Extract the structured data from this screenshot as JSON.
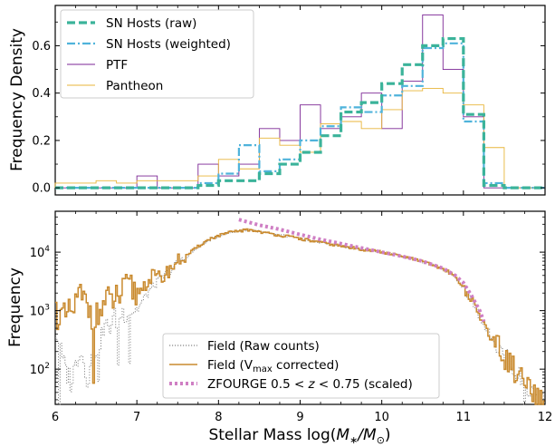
{
  "colors": {
    "sn_raw": "#3bb39a",
    "sn_weighted": "#4fb3db",
    "ptf": "#7b2594",
    "pantheon": "#e8b53a",
    "field_raw": "#888888",
    "field_vmax": "#c98a2e",
    "zfourge": "#cf7fc4"
  },
  "chart_data": [
    {
      "type": "histogram",
      "panel": "top",
      "xlabel": "",
      "ylabel": "Frequency Density",
      "xlim": [
        6,
        12
      ],
      "ylim": [
        -0.03,
        0.77
      ],
      "yticks": [
        0.0,
        0.2,
        0.4,
        0.6
      ],
      "ytick_labels": [
        "0.0",
        "0.2",
        "0.4",
        "0.6"
      ],
      "xticks": [
        6,
        7,
        8,
        9,
        10,
        11,
        12
      ],
      "grid": false,
      "legend_position": "upper-left",
      "bin_edges": [
        6.0,
        6.5,
        6.75,
        7.0,
        7.25,
        7.5,
        7.75,
        8.0,
        8.25,
        8.5,
        8.75,
        9.0,
        9.25,
        9.5,
        9.75,
        10.0,
        10.25,
        10.5,
        10.75,
        11.0,
        11.25,
        11.5,
        12.0
      ],
      "series": [
        {
          "name": "PTF",
          "style": "solid-thin",
          "color_key": "ptf",
          "values": [
            0.0,
            0.0,
            0.0,
            0.05,
            0.0,
            0.0,
            0.1,
            0.05,
            0.1,
            0.25,
            0.2,
            0.35,
            0.25,
            0.3,
            0.4,
            0.25,
            0.45,
            0.73,
            0.5,
            0.3,
            0.0,
            0.0
          ]
        },
        {
          "name": "Pantheon",
          "style": "solid-thin",
          "color_key": "pantheon",
          "values": [
            0.02,
            0.03,
            0.02,
            0.03,
            0.03,
            0.03,
            0.05,
            0.12,
            0.08,
            0.21,
            0.18,
            0.15,
            0.27,
            0.28,
            0.25,
            0.33,
            0.41,
            0.42,
            0.4,
            0.35,
            0.17,
            0.0
          ]
        },
        {
          "name": "SN Hosts (weighted)",
          "style": "dashdot",
          "color_key": "sn_weighted",
          "values": [
            0.0,
            0.0,
            0.0,
            0.0,
            0.0,
            0.0,
            0.02,
            0.06,
            0.18,
            0.07,
            0.12,
            0.2,
            0.26,
            0.34,
            0.32,
            0.39,
            0.43,
            0.59,
            0.61,
            0.28,
            0.02,
            0.0
          ]
        },
        {
          "name": "SN Hosts (raw)",
          "style": "dashed-thick",
          "color_key": "sn_raw",
          "values": [
            0.0,
            0.0,
            0.0,
            0.0,
            0.0,
            0.0,
            0.01,
            0.03,
            0.03,
            0.06,
            0.1,
            0.15,
            0.22,
            0.32,
            0.36,
            0.44,
            0.52,
            0.6,
            0.63,
            0.31,
            0.01,
            0.0
          ]
        }
      ],
      "legend": [
        "SN Hosts (raw)",
        "SN Hosts (weighted)",
        "PTF",
        "Pantheon"
      ]
    },
    {
      "type": "histogram",
      "panel": "bottom",
      "xlabel": "Stellar Mass log(",
      "xlabel_math_1": "M",
      "xlabel_math_sub1": "∗",
      "xlabel_math_2": "/M",
      "xlabel_math_sub2": "⊙",
      "xlabel_end": ")",
      "ylabel": "Frequency",
      "xlim": [
        6,
        12
      ],
      "yscale": "log",
      "ylim": [
        25,
        50000
      ],
      "xticks": [
        6,
        7,
        8,
        9,
        10,
        11,
        12
      ],
      "xtick_labels": [
        "6",
        "7",
        "8",
        "9",
        "10",
        "11",
        "12"
      ],
      "ytick_labels": [
        {
          "base": "10",
          "exp": "2",
          "value": 100
        },
        {
          "base": "10",
          "exp": "3",
          "value": 1000
        },
        {
          "base": "10",
          "exp": "4",
          "value": 10000
        }
      ],
      "grid": false,
      "legend_position": "lower-center",
      "field_vmax_anchors": [
        [
          6.0,
          1000
        ],
        [
          6.1,
          700
        ],
        [
          6.2,
          900
        ],
        [
          6.3,
          1800
        ],
        [
          6.4,
          1200
        ],
        [
          6.5,
          700
        ],
        [
          6.6,
          1300
        ],
        [
          6.7,
          1500
        ],
        [
          6.8,
          1800
        ],
        [
          6.9,
          2500
        ],
        [
          7.0,
          2000
        ],
        [
          7.1,
          2800
        ],
        [
          7.2,
          4000
        ],
        [
          7.3,
          3500
        ],
        [
          7.4,
          5000
        ],
        [
          7.5,
          7000
        ],
        [
          7.6,
          8500
        ],
        [
          7.7,
          11000
        ],
        [
          7.8,
          14000
        ],
        [
          7.9,
          17000
        ],
        [
          8.0,
          19000
        ],
        [
          8.1,
          21000
        ],
        [
          8.2,
          22500
        ],
        [
          8.3,
          23500
        ],
        [
          8.4,
          24000
        ],
        [
          8.5,
          22500
        ],
        [
          8.6,
          21000
        ],
        [
          8.7,
          20000
        ],
        [
          8.8,
          19000
        ],
        [
          8.9,
          18000
        ],
        [
          9.0,
          17000
        ],
        [
          9.2,
          15000
        ],
        [
          9.4,
          13500
        ],
        [
          9.6,
          12000
        ],
        [
          9.8,
          11000
        ],
        [
          10.0,
          10000
        ],
        [
          10.2,
          8800
        ],
        [
          10.4,
          7500
        ],
        [
          10.6,
          6200
        ],
        [
          10.8,
          4800
        ],
        [
          10.9,
          3800
        ],
        [
          11.0,
          2500
        ],
        [
          11.1,
          1500
        ],
        [
          11.2,
          800
        ],
        [
          11.3,
          450
        ],
        [
          11.4,
          260
        ],
        [
          11.5,
          160
        ],
        [
          11.6,
          110
        ],
        [
          11.7,
          70
        ],
        [
          11.8,
          45
        ],
        [
          11.9,
          30
        ],
        [
          12.0,
          25
        ]
      ],
      "field_raw_anchors": [
        [
          6.0,
          500
        ],
        [
          6.1,
          120
        ],
        [
          6.2,
          60
        ],
        [
          6.3,
          250
        ],
        [
          6.4,
          70
        ],
        [
          6.5,
          250
        ],
        [
          6.6,
          450
        ],
        [
          6.7,
          650
        ],
        [
          6.8,
          850
        ],
        [
          6.9,
          1100
        ],
        [
          7.0,
          1000
        ],
        [
          7.1,
          1700
        ],
        [
          7.2,
          2700
        ],
        [
          7.3,
          3500
        ],
        [
          7.4,
          4800
        ],
        [
          7.5,
          6500
        ],
        [
          7.6,
          8000
        ],
        [
          7.7,
          10500
        ],
        [
          7.8,
          13500
        ],
        [
          7.9,
          16500
        ],
        [
          8.0,
          19000
        ],
        [
          8.1,
          21000
        ],
        [
          8.2,
          22500
        ],
        [
          8.3,
          23500
        ],
        [
          8.4,
          24000
        ],
        [
          8.5,
          22500
        ],
        [
          8.6,
          21000
        ],
        [
          8.7,
          20000
        ],
        [
          8.8,
          19000
        ],
        [
          8.9,
          18000
        ],
        [
          9.0,
          17000
        ],
        [
          9.2,
          15000
        ],
        [
          9.4,
          13500
        ],
        [
          9.6,
          12000
        ],
        [
          9.8,
          11000
        ],
        [
          10.0,
          10000
        ],
        [
          10.2,
          8800
        ],
        [
          10.4,
          7500
        ],
        [
          10.6,
          6200
        ],
        [
          10.8,
          4800
        ],
        [
          10.9,
          3800
        ],
        [
          11.0,
          2500
        ],
        [
          11.1,
          1500
        ],
        [
          11.2,
          800
        ],
        [
          11.3,
          450
        ],
        [
          11.4,
          260
        ],
        [
          11.5,
          160
        ],
        [
          11.6,
          110
        ],
        [
          11.7,
          70
        ],
        [
          11.8,
          45
        ],
        [
          11.9,
          30
        ],
        [
          12.0,
          25
        ]
      ],
      "zfourge_points": [
        [
          8.25,
          36000
        ],
        [
          8.5,
          29000
        ],
        [
          8.75,
          24500
        ],
        [
          9.0,
          20000
        ],
        [
          9.25,
          16500
        ],
        [
          9.5,
          14000
        ],
        [
          9.75,
          11800
        ],
        [
          10.0,
          10000
        ],
        [
          10.25,
          8500
        ],
        [
          10.5,
          7000
        ],
        [
          10.75,
          5300
        ],
        [
          10.9,
          4000
        ],
        [
          11.0,
          3000
        ],
        [
          11.1,
          1800
        ],
        [
          11.2,
          1000
        ],
        [
          11.25,
          650
        ]
      ],
      "legend": [
        {
          "label": "Field (Raw counts)",
          "color_key": "field_raw",
          "style": "dotted"
        },
        {
          "label": "Field (V",
          "sub": "max",
          "label_end": " corrected)",
          "color_key": "field_vmax",
          "style": "solid"
        },
        {
          "label": "ZFOURGE 0.5 < ",
          "math": "z",
          "label_end": " < 0.75 (scaled)",
          "color_key": "zfourge",
          "style": "dotted-thick"
        }
      ]
    }
  ]
}
